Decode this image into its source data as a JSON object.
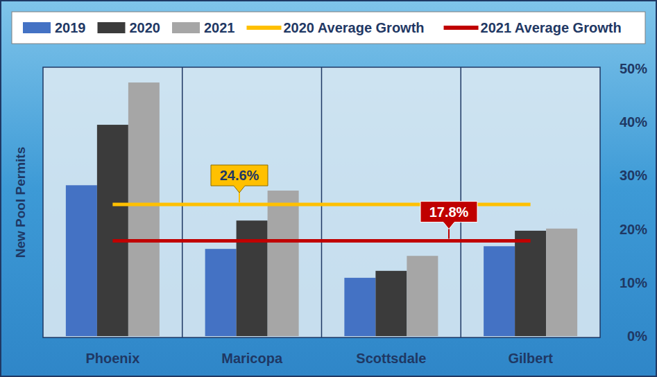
{
  "chart_data": {
    "type": "bar",
    "y_label": "New Pool Permits",
    "categories": [
      "Phoenix",
      "Maricopa",
      "Scottsdale",
      "Gilbert"
    ],
    "series": [
      {
        "name": "2019",
        "color": "#4472c4",
        "values": [
          28.2,
          16.3,
          10.9,
          16.8
        ]
      },
      {
        "name": "2020",
        "color": "#3b3b3b",
        "values": [
          39.5,
          21.6,
          12.2,
          19.7
        ]
      },
      {
        "name": "2021",
        "color": "#a6a6a6",
        "values": [
          47.4,
          27.2,
          15.0,
          20.1
        ]
      }
    ],
    "annotations": [
      {
        "name": "2020 Average Growth",
        "value": 24.6,
        "label": "24.6%",
        "color": "#ffc000"
      },
      {
        "name": "2021 Average Growth",
        "value": 17.8,
        "label": "17.8%",
        "color": "#c00000"
      }
    ],
    "ylim": [
      0,
      50
    ],
    "yticks": [
      {
        "value": 0,
        "label": "0%"
      },
      {
        "value": 10,
        "label": "10%"
      },
      {
        "value": 20,
        "label": "20%"
      },
      {
        "value": 30,
        "label": "30%"
      },
      {
        "value": 40,
        "label": "40%"
      },
      {
        "value": 50,
        "label": "50%"
      }
    ],
    "grid": false,
    "legend": "top"
  }
}
